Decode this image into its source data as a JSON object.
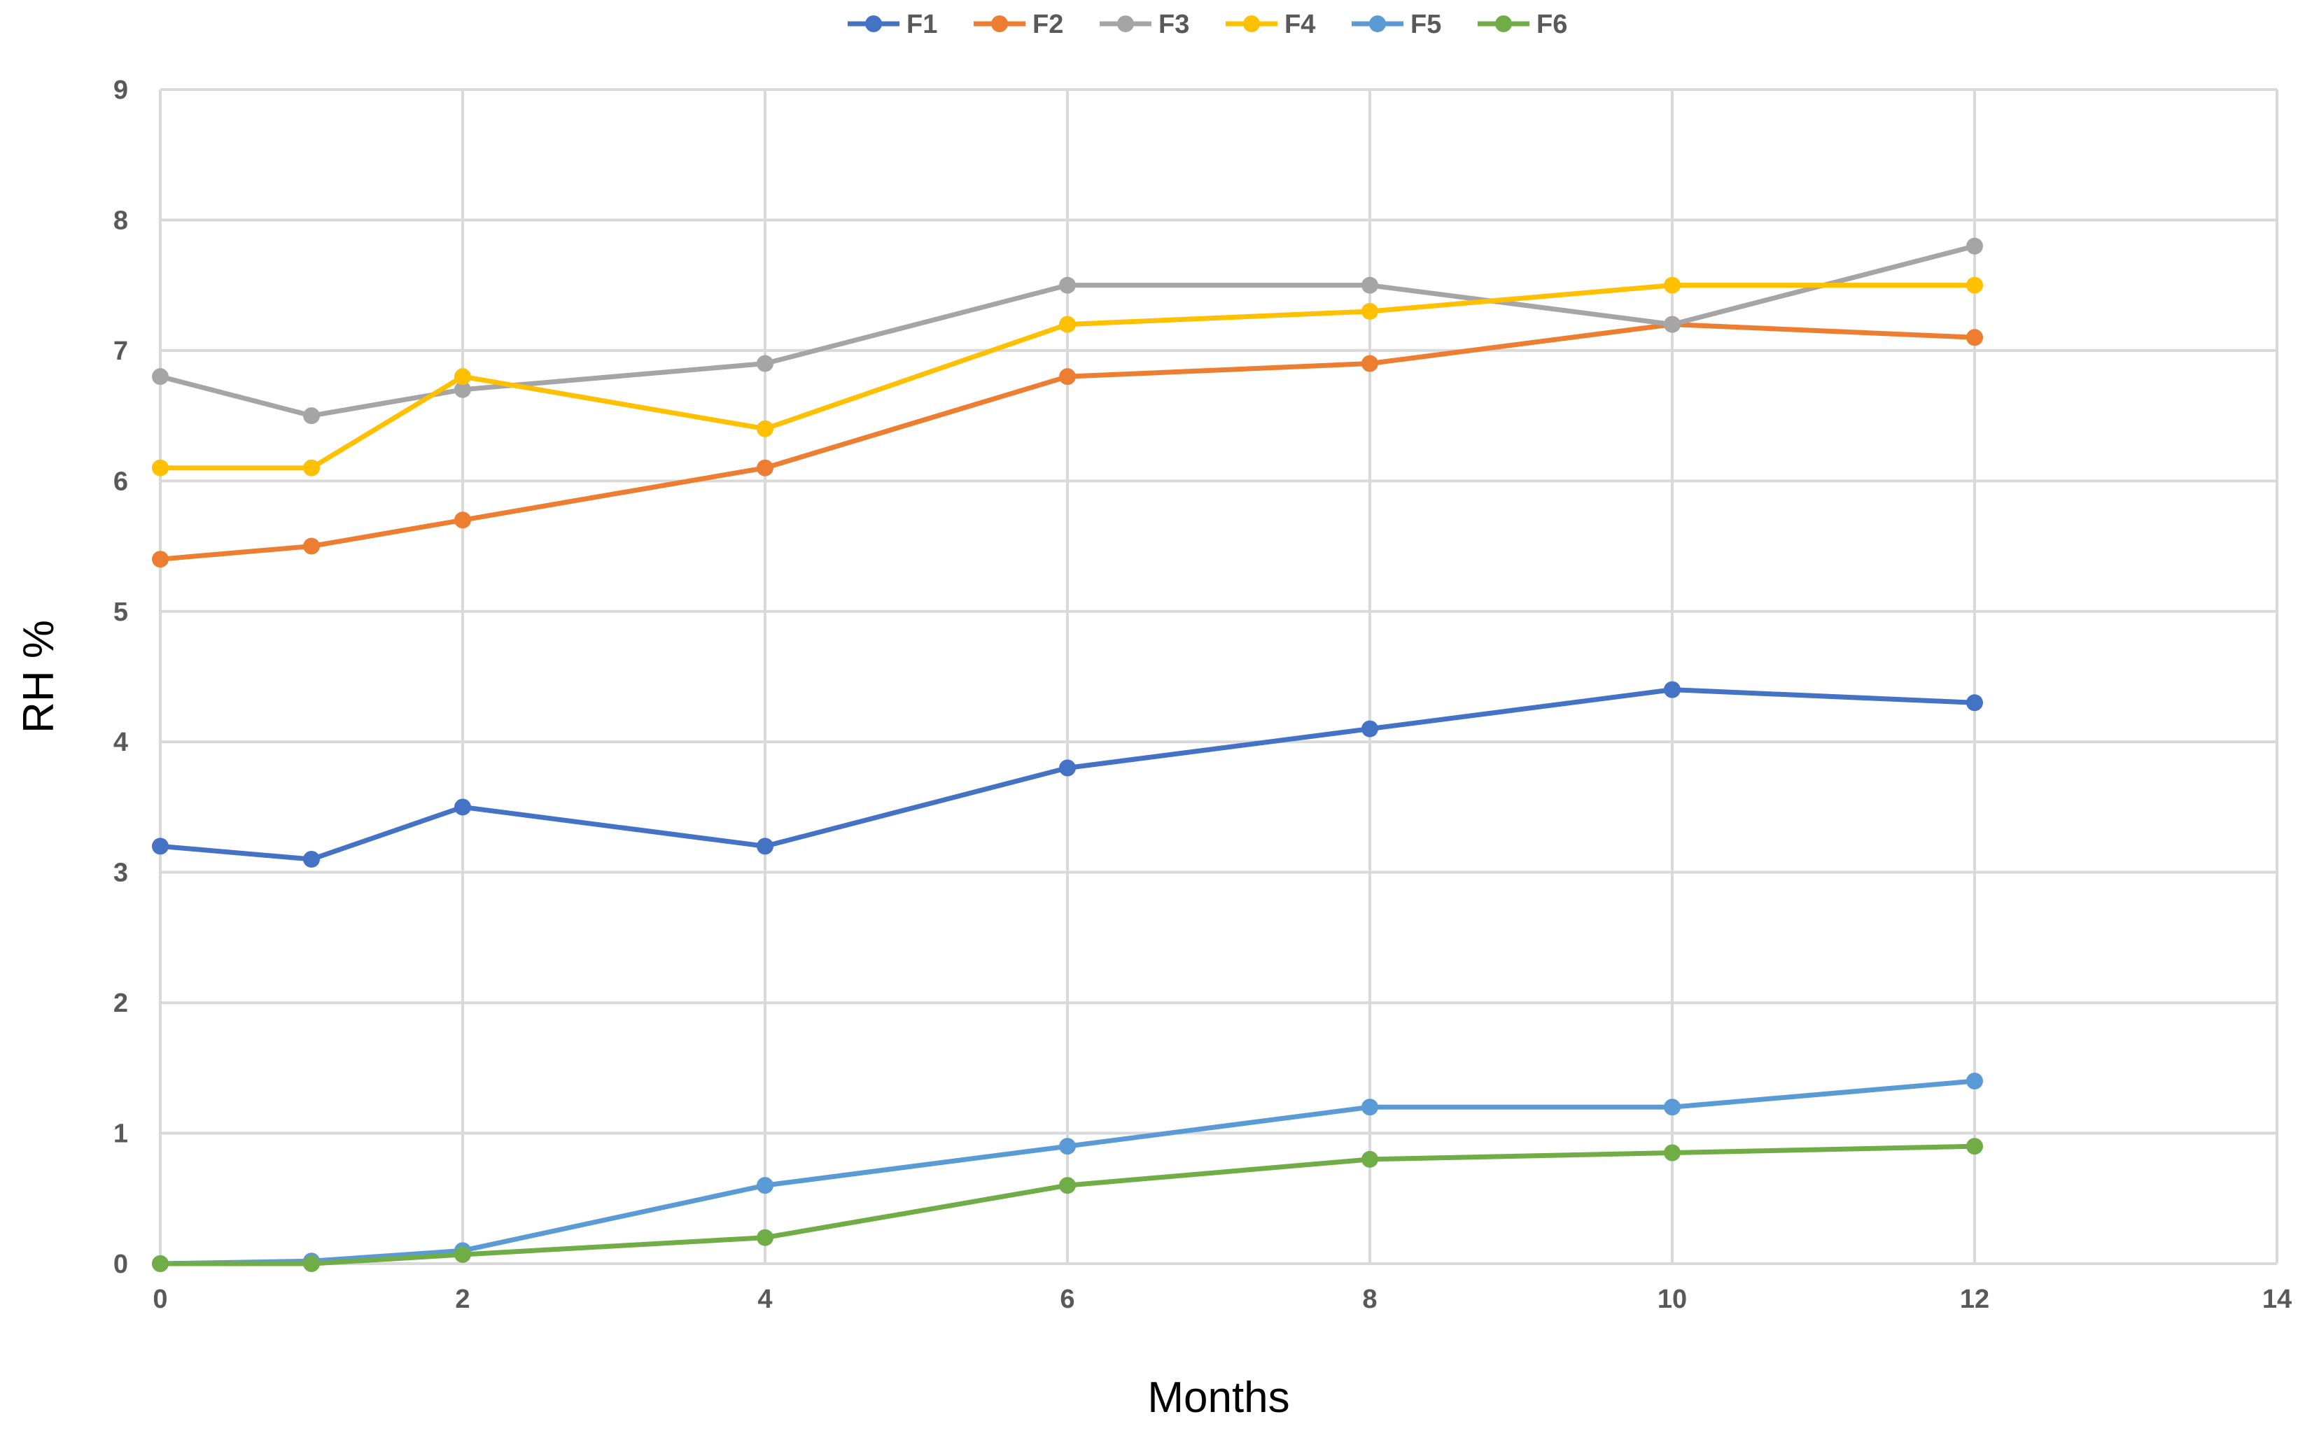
{
  "chart_data": {
    "type": "line",
    "title": "",
    "xlabel": "Months",
    "ylabel": "RH %",
    "xlim": [
      0,
      14
    ],
    "ylim": [
      0,
      9
    ],
    "x_ticks": [
      "0",
      "2",
      "4",
      "6",
      "8",
      "10",
      "12",
      "14"
    ],
    "y_ticks": [
      "0",
      "1",
      "2",
      "3",
      "4",
      "5",
      "6",
      "7",
      "8",
      "9"
    ],
    "grid": true,
    "legend_position": "top",
    "x": [
      0,
      1,
      2,
      4,
      6,
      8,
      10,
      12
    ],
    "series": [
      {
        "name": "F1",
        "color": "#4472C4",
        "values": [
          3.2,
          3.1,
          3.5,
          3.2,
          3.8,
          4.1,
          4.4,
          4.3
        ]
      },
      {
        "name": "F2",
        "color": "#ED7D31",
        "values": [
          5.4,
          5.5,
          5.7,
          6.1,
          6.8,
          6.9,
          7.2,
          7.1
        ]
      },
      {
        "name": "F3",
        "color": "#A5A5A5",
        "values": [
          6.8,
          6.5,
          6.7,
          6.9,
          7.5,
          7.5,
          7.2,
          7.8
        ]
      },
      {
        "name": "F4",
        "color": "#FFC000",
        "values": [
          6.1,
          6.1,
          6.8,
          6.4,
          7.2,
          7.3,
          7.5,
          7.5
        ]
      },
      {
        "name": "F5",
        "color": "#5B9BD5",
        "values": [
          0,
          0.02,
          0.1,
          0.6,
          0.9,
          1.2,
          1.2,
          1.4
        ]
      },
      {
        "name": "F6",
        "color": "#70AD47",
        "values": [
          0,
          0,
          0.07,
          0.2,
          0.6,
          0.8,
          0.85,
          0.9
        ]
      }
    ]
  }
}
